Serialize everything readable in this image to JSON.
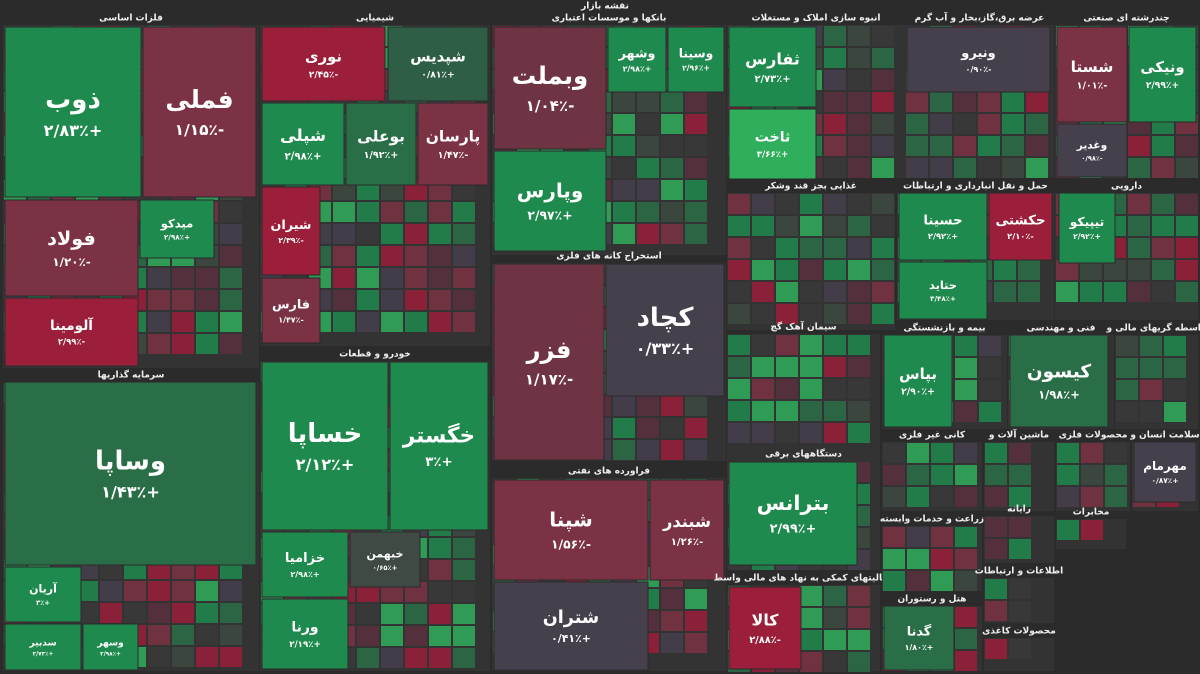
{
  "title": "نقشه بازار",
  "sectors": [
    {
      "title": "فلزات اساسی",
      "tiles": [
        {
          "name": "ذوب",
          "change": "+۲/۸۳٪",
          "color": "#1f8a4d"
        },
        {
          "name": "فملی",
          "change": "-۱/۱۵٪",
          "color": "#7b3244"
        },
        {
          "name": "فولاد",
          "change": "-۱/۲۰٪",
          "color": "#7b3244"
        },
        {
          "name": "میدکو",
          "change": "+۲/۹۸٪",
          "color": "#1f8a4d"
        },
        {
          "name": "آلومینا",
          "change": "-۲/۹۹٪",
          "color": "#9b1f3a"
        }
      ]
    },
    {
      "title": "سرمایه گذاریها",
      "tiles": [
        {
          "name": "وساپا",
          "change": "+۱/۴۳٪",
          "color": "#2a6e47"
        },
        {
          "name": "آریان",
          "change": "+۳٪",
          "color": "#1f8a4d"
        },
        {
          "name": "سدبیر",
          "change": "+۲/۷۳٪",
          "color": "#1f8a4d"
        },
        {
          "name": "وسهر",
          "change": "+۲/۹۸٪",
          "color": "#1f8a4d"
        }
      ]
    },
    {
      "title": "شیمیایی",
      "tiles": [
        {
          "name": "نوری",
          "change": "-۲/۴۵٪",
          "color": "#9b1f3a"
        },
        {
          "name": "شپدیس",
          "change": "+۰/۸۱٪",
          "color": "#2e5e45"
        },
        {
          "name": "شپلی",
          "change": "+۲/۹۸٪",
          "color": "#1f8a4d"
        },
        {
          "name": "بوعلی",
          "change": "+۱/۹۲٪",
          "color": "#2a6e47"
        },
        {
          "name": "پارسان",
          "change": "-۱/۴۷٪",
          "color": "#7b3244"
        },
        {
          "name": "شیران",
          "change": "-۲/۳۹٪",
          "color": "#9b1f3a"
        },
        {
          "name": "فارس",
          "change": "-۱/۴۷٪",
          "color": "#7b3244"
        }
      ]
    },
    {
      "title": "خودرو و قطعات",
      "tiles": [
        {
          "name": "خساپا",
          "change": "+۲/۱۲٪",
          "color": "#1f8a4d"
        },
        {
          "name": "خگستر",
          "change": "+۳٪",
          "color": "#1f8a4d"
        },
        {
          "name": "خزامیا",
          "change": "+۲/۹۸٪",
          "color": "#1f8a4d"
        },
        {
          "name": "ورنا",
          "change": "+۲/۱۹٪",
          "color": "#1f8a4d"
        },
        {
          "name": "خبهمن",
          "change": "+۰/۶۵٪",
          "color": "#3f4a44"
        }
      ]
    },
    {
      "title": "بانکها و موسسات اعتباری",
      "tiles": [
        {
          "name": "وبملت",
          "change": "-۱/۰۴٪",
          "color": "#6e3444"
        },
        {
          "name": "وپارس",
          "change": "+۲/۹۷٪",
          "color": "#1f8a4d"
        },
        {
          "name": "وشهر",
          "change": "+۲/۹۸٪",
          "color": "#1f8a4d"
        },
        {
          "name": "وسینا",
          "change": "+۲/۹۶٪",
          "color": "#1f8a4d"
        }
      ]
    },
    {
      "title": "استخراج کانه های فلزی",
      "tiles": [
        {
          "name": "فزر",
          "change": "-۱/۱۷٪",
          "color": "#6e3444"
        },
        {
          "name": "کچاد",
          "change": "+۰/۳۳٪",
          "color": "#45404c"
        }
      ]
    },
    {
      "title": "فراورده های نفتی",
      "tiles": [
        {
          "name": "شپنا",
          "change": "-۱/۵۶٪",
          "color": "#7b3244"
        },
        {
          "name": "شبندر",
          "change": "-۱/۲۶٪",
          "color": "#7b3244"
        },
        {
          "name": "شتران",
          "change": "+۰/۴۱٪",
          "color": "#45404c"
        }
      ]
    },
    {
      "title": "انبوه سازی املاک و مستغلات",
      "tiles": [
        {
          "name": "ثفارس",
          "change": "+۲/۷۳٪",
          "color": "#1f8a4d"
        },
        {
          "name": "ثاخت",
          "change": "+۳/۶۶٪",
          "color": "#2fae5c"
        }
      ]
    },
    {
      "title": "غذایی بجز قند وشکر",
      "tiles": []
    },
    {
      "title": "سیمان آهک گچ",
      "tiles": []
    },
    {
      "title": "دستگاههای برقی",
      "tiles": [
        {
          "name": "بترانس",
          "change": "+۲/۹۹٪",
          "color": "#1f8a4d"
        }
      ]
    },
    {
      "title": "فعالیتهای کمکی به نهاد های مالی واسط",
      "tiles": [
        {
          "name": "کالا",
          "change": "-۲/۸۸٪",
          "color": "#9b1f3a"
        }
      ]
    },
    {
      "title": "عرضه برق،گاز،بخار و آب گرم",
      "tiles": [
        {
          "name": "ونیرو",
          "change": "-۰/۹۰٪",
          "color": "#45404c"
        }
      ]
    },
    {
      "title": "حمل و نقل انبارداری و ارتباطات",
      "tiles": [
        {
          "name": "حسینا",
          "change": "+۲/۹۲٪",
          "color": "#1f8a4d"
        },
        {
          "name": "حکشتی",
          "change": "-۲/۱۰٪",
          "color": "#9b1f3a"
        },
        {
          "name": "حتاید",
          "change": "+۳/۴۸٪",
          "color": "#1f8a4d"
        }
      ]
    },
    {
      "title": "بیمه و بازنشستگی",
      "tiles": [
        {
          "name": "بپاس",
          "change": "+۲/۹۰٪",
          "color": "#1f8a4d"
        }
      ]
    },
    {
      "title": "فنی و مهندسی",
      "tiles": [
        {
          "name": "کیسون",
          "change": "+۱/۹۸٪",
          "color": "#2a6e47"
        }
      ]
    },
    {
      "title": "چندرشته ای صنعتی",
      "tiles": [
        {
          "name": "شستا",
          "change": "-۱/۰۱٪",
          "color": "#7b3244"
        },
        {
          "name": "ونیکی",
          "change": "+۲/۹۹٪",
          "color": "#1f8a4d"
        },
        {
          "name": "وغدیر",
          "change": "-۰/۹۸٪",
          "color": "#45404c"
        }
      ]
    },
    {
      "title": "دارویی",
      "tiles": [
        {
          "name": "تیپیکو",
          "change": "+۲/۹۲٪",
          "color": "#1f8a4d"
        }
      ]
    },
    {
      "title": "واسطه گریهای مالی و",
      "tiles": []
    },
    {
      "title": "کانی غیر فلزی",
      "tiles": []
    },
    {
      "title": "ماشین آلات و",
      "tiles": []
    },
    {
      "title": "محصولات فلزی",
      "tiles": []
    },
    {
      "title": "سلامت انسان و",
      "tiles": [
        {
          "name": "مهرمام",
          "change": "+۰/۸۷٪",
          "color": "#45404c"
        }
      ]
    },
    {
      "title": "زراعت و خدمات وابسته",
      "tiles": []
    },
    {
      "title": "هتل و رستوران",
      "tiles": [
        {
          "name": "گدنا",
          "change": "+۱/۸۰٪",
          "color": "#2a6e47"
        }
      ]
    },
    {
      "title": "رایانه",
      "tiles": []
    },
    {
      "title": "اطلاعات و ارتباطات",
      "tiles": []
    },
    {
      "title": "محصولات کاغذی",
      "tiles": []
    },
    {
      "title": "مخابرات",
      "tiles": []
    }
  ]
}
